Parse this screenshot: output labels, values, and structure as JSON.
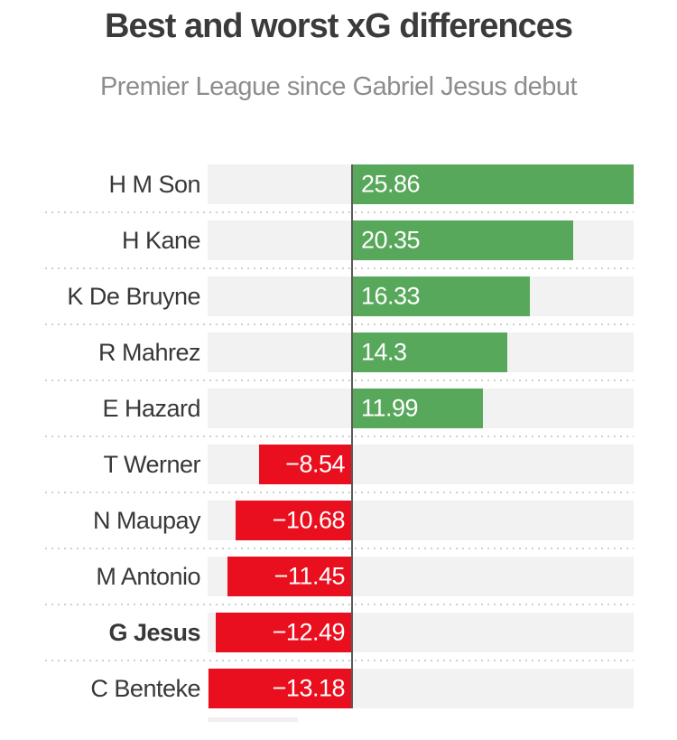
{
  "header": {
    "title": "Best and worst xG differences",
    "subtitle": "Premier League since Gabriel Jesus debut"
  },
  "chart_data": {
    "type": "bar",
    "orientation": "horizontal",
    "title": "Best and worst xG differences",
    "subtitle": "Premier League since Gabriel Jesus debut",
    "categories": [
      "H M Son",
      "H Kane",
      "K De Bruyne",
      "R Mahrez",
      "E Hazard",
      "T Werner",
      "N Maupay",
      "M Antonio",
      "G Jesus",
      "C Benteke"
    ],
    "values": [
      25.86,
      20.35,
      16.33,
      14.3,
      11.99,
      -8.54,
      -10.68,
      -11.45,
      -12.49,
      -13.18
    ],
    "rows": [
      {
        "label": "H M Son",
        "value": 25.86,
        "display": "25.86",
        "bold": false
      },
      {
        "label": "H Kane",
        "value": 20.35,
        "display": "20.35",
        "bold": false
      },
      {
        "label": "K De Bruyne",
        "value": 16.33,
        "display": "16.33",
        "bold": false
      },
      {
        "label": "R Mahrez",
        "value": 14.3,
        "display": "14.3",
        "bold": false
      },
      {
        "label": "E Hazard",
        "value": 11.99,
        "display": "11.99",
        "bold": false
      },
      {
        "label": "T Werner",
        "value": -8.54,
        "display": "−8.54",
        "bold": false
      },
      {
        "label": "N Maupay",
        "value": -10.68,
        "display": "−10.68",
        "bold": false
      },
      {
        "label": "M Antonio",
        "value": -11.45,
        "display": "−11.45",
        "bold": false
      },
      {
        "label": "G Jesus",
        "value": -12.49,
        "display": "−12.49",
        "bold": true
      },
      {
        "label": "C Benteke",
        "value": -13.18,
        "display": "−13.18",
        "bold": false
      }
    ],
    "highlighted_category": "G Jesus",
    "xlim": [
      -13.25,
      25.9
    ],
    "legend": "none",
    "grid": "dotted-row-separators",
    "colors": {
      "positive_bar": "#58a85c",
      "negative_bar": "#ea0f1e",
      "row_track": "#f2f2f2",
      "zero_line": "#5a5a5a",
      "separator": "#cfcfcf",
      "title_text": "#3b3b3b",
      "subtitle_text": "#8d8d8d",
      "label_text": "#383838",
      "value_text": "#ffffff"
    }
  }
}
